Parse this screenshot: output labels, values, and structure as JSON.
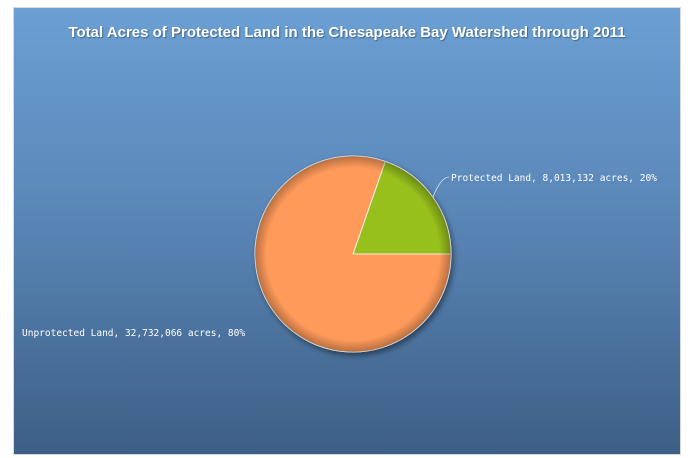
{
  "chart_data": {
    "type": "pie",
    "title": "Total Acres of Protected Land in the Chesapeake Bay Watershed through 2011",
    "slices": [
      {
        "name": "Protected Land",
        "value": 8013132,
        "percent": 20,
        "color": "#98c01c",
        "label": "Protected Land, 8,013,132 acres, 20%"
      },
      {
        "name": "Unprotected Land",
        "value": 32732066,
        "percent": 80,
        "color": "#ff9a5a",
        "label": "Unprotected Land, 32,732,066 acres, 80%"
      }
    ],
    "legend": "none",
    "data_labels": "outside with leader line"
  }
}
